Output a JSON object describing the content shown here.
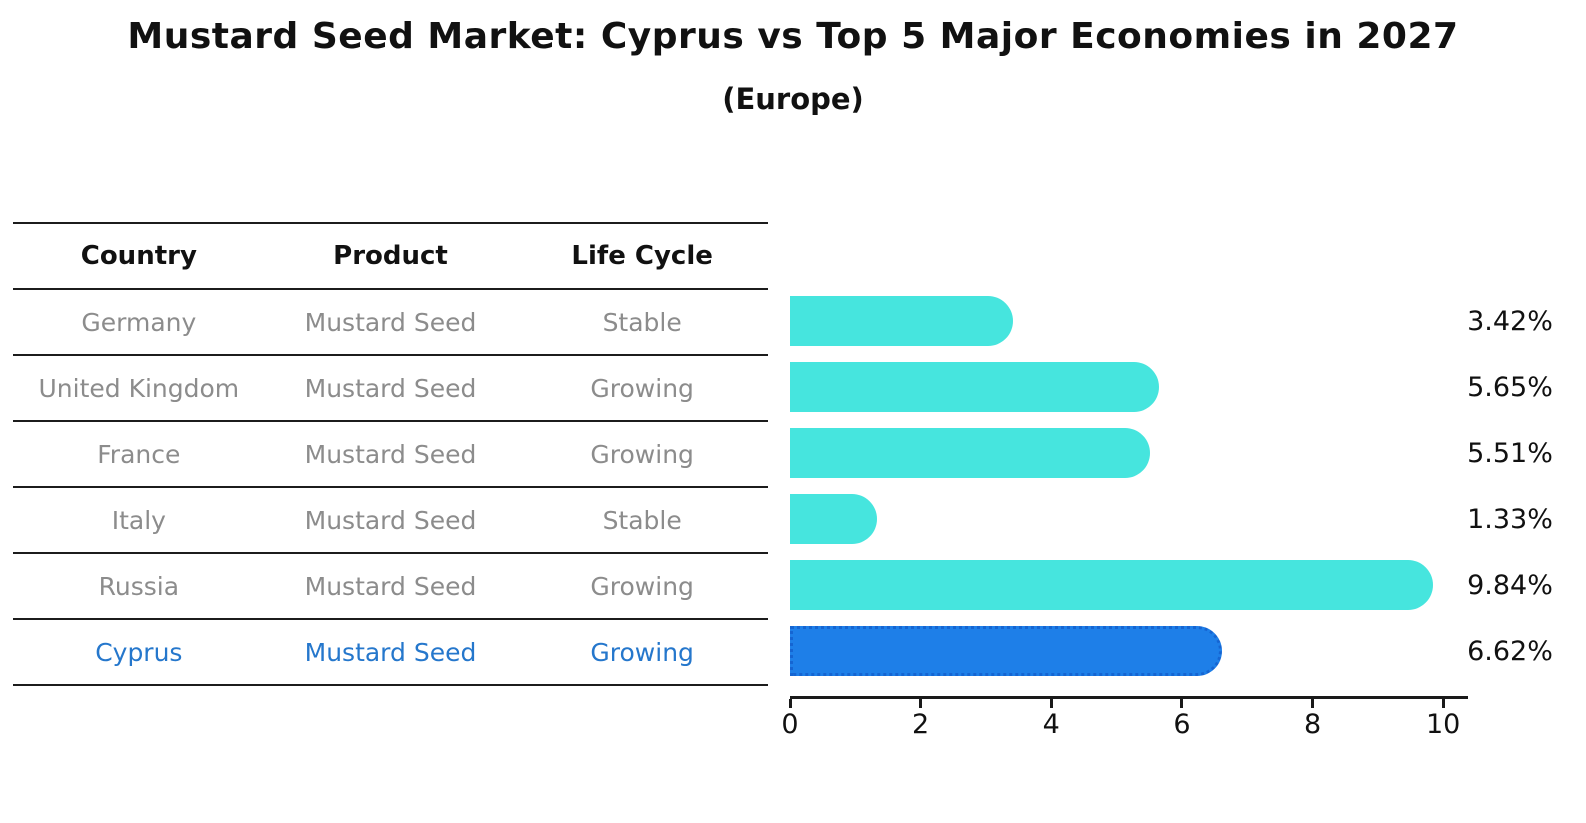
{
  "title": "Mustard Seed Market: Cyprus vs Top 5 Major Economies in 2027",
  "subtitle": "(Europe)",
  "table": {
    "headers": [
      "Country",
      "Product",
      "Life Cycle"
    ],
    "rows": [
      {
        "country": "Germany",
        "product": "Mustard Seed",
        "life_cycle": "Stable",
        "highlight": false
      },
      {
        "country": "United Kingdom",
        "product": "Mustard Seed",
        "life_cycle": "Growing",
        "highlight": false
      },
      {
        "country": "France",
        "product": "Mustard Seed",
        "life_cycle": "Growing",
        "highlight": false
      },
      {
        "country": "Italy",
        "product": "Mustard Seed",
        "life_cycle": "Stable",
        "highlight": false
      },
      {
        "country": "Russia",
        "product": "Mustard Seed",
        "life_cycle": "Growing",
        "highlight": false
      },
      {
        "country": "Cyprus",
        "product": "Mustard Seed",
        "life_cycle": "Growing",
        "highlight": true
      }
    ]
  },
  "chart_data": {
    "type": "bar",
    "orientation": "horizontal",
    "title": "Mustard Seed Market: Cyprus vs Top 5 Major Economies in 2027",
    "subtitle": "(Europe)",
    "categories": [
      "Germany",
      "United Kingdom",
      "France",
      "Italy",
      "Russia",
      "Cyprus"
    ],
    "values": [
      3.42,
      5.65,
      5.51,
      1.33,
      9.84,
      6.62
    ],
    "labels": [
      "3.42%",
      "5.65%",
      "5.51%",
      "1.33%",
      "9.84%",
      "6.62%"
    ],
    "x_ticks": [
      0,
      2,
      4,
      6,
      8,
      10
    ],
    "xlim": [
      0,
      10.38
    ],
    "grid": false,
    "legend": "none",
    "bar_color": "#46e5de",
    "highlight_bar_color": "#1e7fe8",
    "highlight_border_color": "#1565d2",
    "highlight_index": 5
  },
  "colors": {
    "background": "#ffffff",
    "text": "#111111",
    "table_row_text": "#8c8c8c",
    "table_line": "#1c1c1c",
    "highlight_text": "#2577cc"
  }
}
